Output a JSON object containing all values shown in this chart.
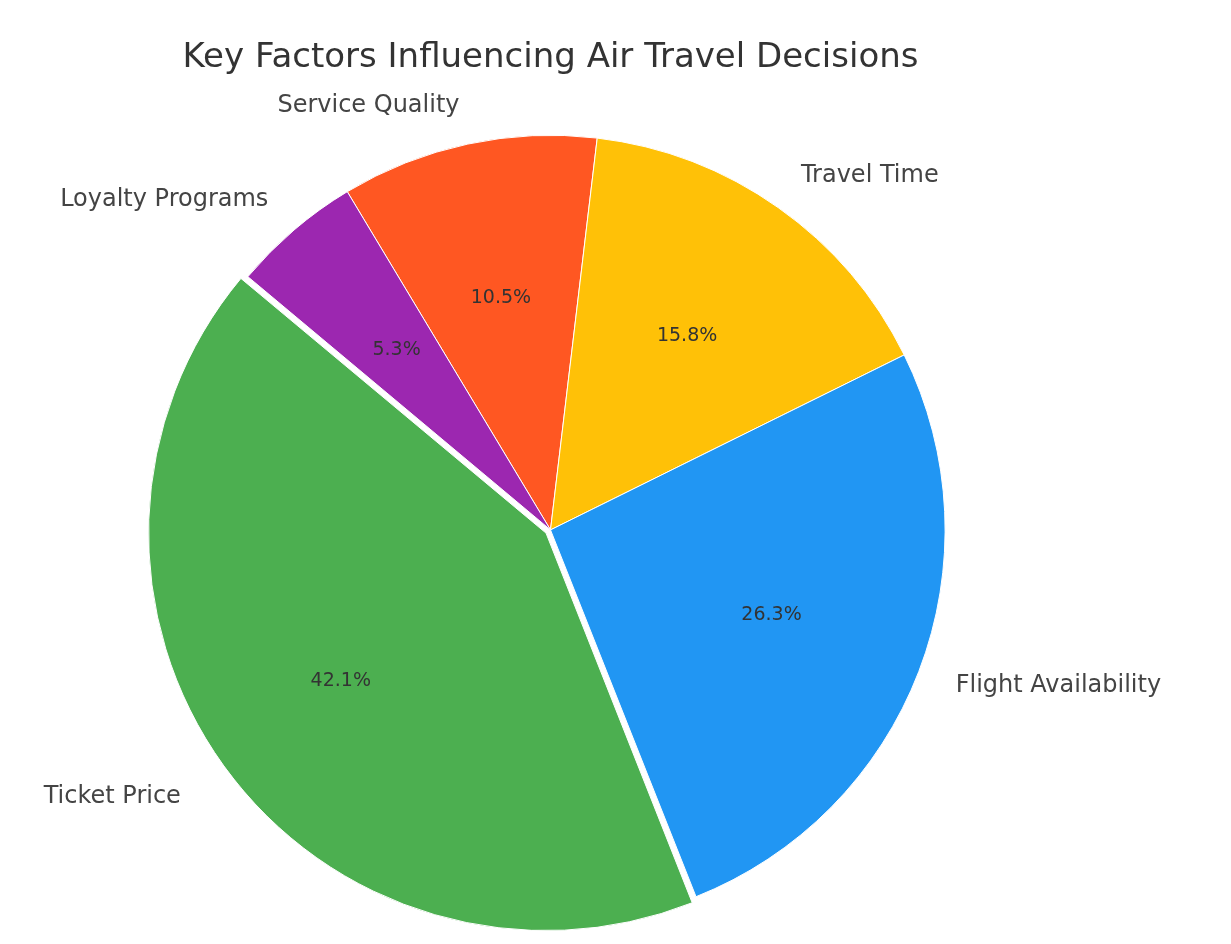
{
  "chart_data": {
    "type": "pie",
    "title": "Key Factors Influencing Air Travel Decisions",
    "categories": [
      "Service Quality",
      "Travel Time",
      "Flight Availability",
      "Ticket Price",
      "Loyalty Programs"
    ],
    "values": [
      10.5,
      15.8,
      26.3,
      42.1,
      5.3
    ],
    "colors": [
      "#ff5722",
      "#ffc107",
      "#2196f3",
      "#4caf50",
      "#9c27b0"
    ],
    "value_labels": [
      "10.5%",
      "15.8%",
      "26.3%",
      "42.1%",
      "5.3%"
    ],
    "legend": false
  }
}
